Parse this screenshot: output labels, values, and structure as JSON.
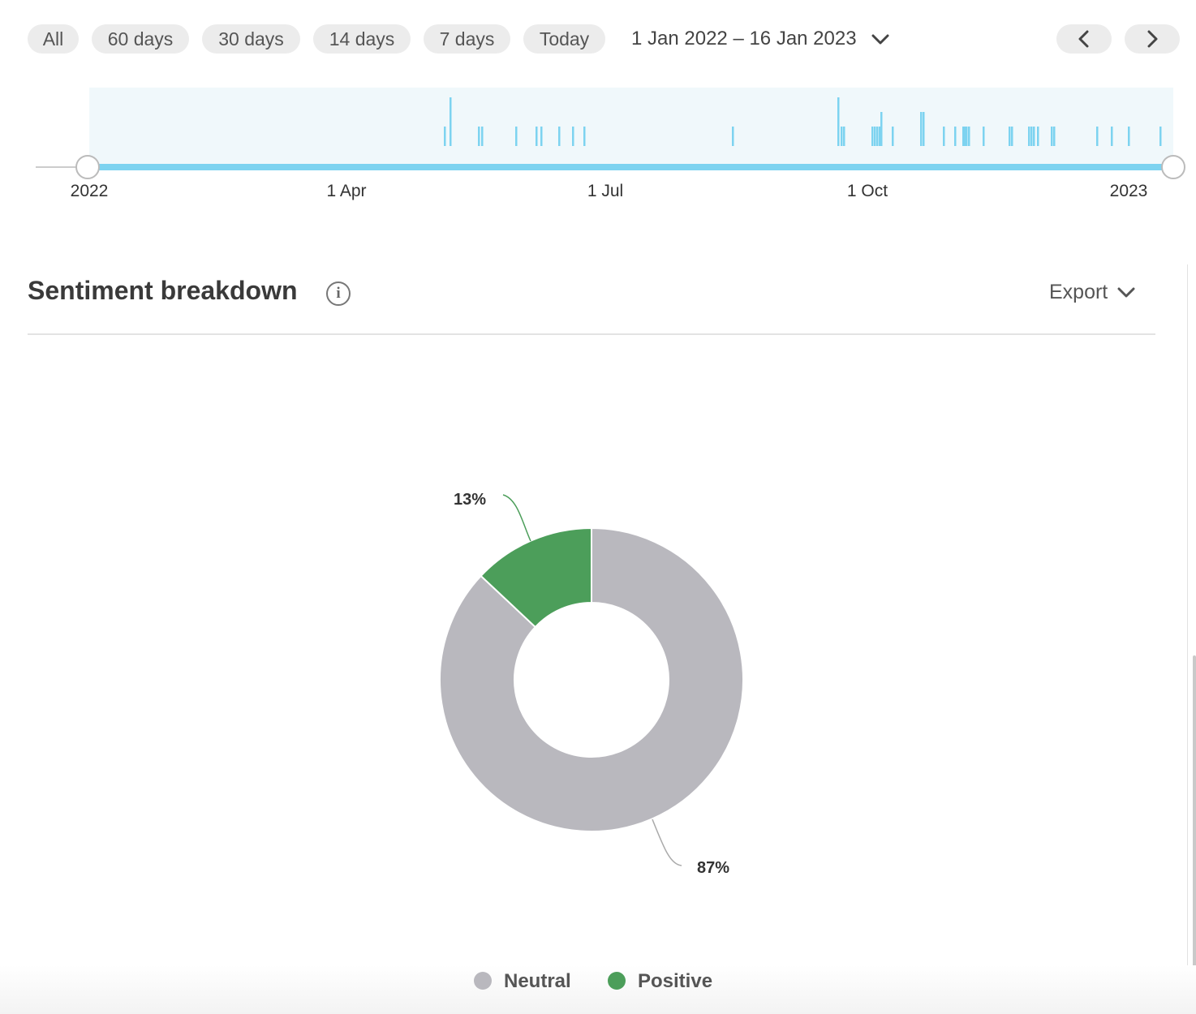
{
  "range_buttons": [
    "All",
    "60 days",
    "30 days",
    "14 days",
    "7 days",
    "Today"
  ],
  "date_range": {
    "label": "1 Jan 2022 – 16 Jan 2023",
    "icon": "chevron-down-icon"
  },
  "nav": {
    "prev_icon": "chevron-left-icon",
    "next_icon": "chevron-right-icon"
  },
  "timeline": {
    "tick_labels": [
      "2022",
      "1 Apr",
      "1 Jul",
      "1 Oct",
      "2023"
    ],
    "start_date": "2022-01-01",
    "end_date": "2023-01-16",
    "selection_color": "#7dd3f0",
    "background_color": "#f0f8fb"
  },
  "section": {
    "title": "Sentiment breakdown",
    "info_icon": "info-icon",
    "export_label": "Export"
  },
  "chart_data": {
    "type": "pie",
    "donut": true,
    "series": [
      {
        "name": "Neutral",
        "value": 87,
        "label": "87%",
        "color": "#b9b8be"
      },
      {
        "name": "Positive",
        "value": 13,
        "label": "13%",
        "color": "#4c9e5a"
      }
    ],
    "legend_position": "bottom"
  },
  "legend": [
    {
      "label": "Neutral",
      "color": "#b9b8be"
    },
    {
      "label": "Positive",
      "color": "#4c9e5a"
    }
  ]
}
